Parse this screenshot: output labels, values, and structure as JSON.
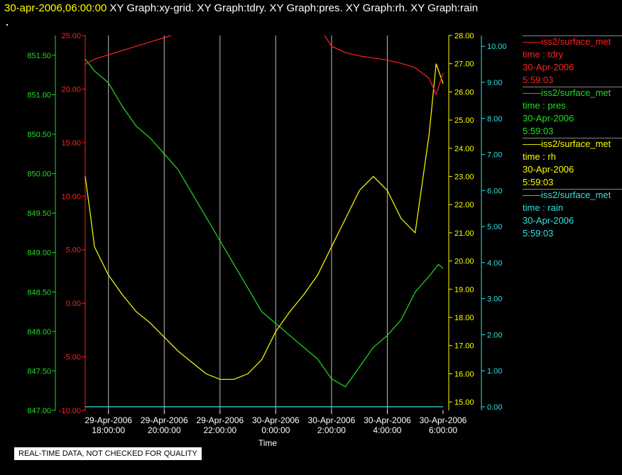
{
  "header": {
    "timestamp": "30-apr-2006,06:00:00",
    "graphs": "XY Graph:xy-grid.  XY Graph:tdry.  XY Graph:pres.  XY Graph:rh.  XY Graph:rain"
  },
  "notice": "REAL-TIME DATA, NOT CHECKED FOR QUALITY",
  "colors": {
    "tdry": "#ff2020",
    "pres": "#22dd22",
    "rh": "#ffff00",
    "rain": "#33e0e0",
    "grid": "#bbbbbb"
  },
  "legend": [
    {
      "series": "——iss2/surface_met",
      "label": "time : tdry",
      "date": "30-Apr-2006",
      "time": "5:59:03",
      "color": "#ff2020"
    },
    {
      "series": "——iss2/surface_met",
      "label": "time : pres",
      "date": "30-Apr-2006",
      "time": "5:59:03",
      "color": "#22dd22"
    },
    {
      "series": "——iss2/surface_met",
      "label": "time : rh",
      "date": "30-Apr-2006",
      "time": "5:59:03",
      "color": "#ffff00"
    },
    {
      "series": "——iss2/surface_met",
      "label": "time : rain",
      "date": "30-Apr-2006",
      "time": "5:59:03",
      "color": "#33e0e0"
    }
  ],
  "chart_data": {
    "type": "line",
    "xlabel": "Time",
    "xlim": [
      "2006-04-29 17:10",
      "2006-04-30 06:00"
    ],
    "x_ticks": [
      {
        "date": "29-Apr-2006",
        "time": "18:00:00"
      },
      {
        "date": "29-Apr-2006",
        "time": "20:00:00"
      },
      {
        "date": "29-Apr-2006",
        "time": "22:00:00"
      },
      {
        "date": "30-Apr-2006",
        "time": "0:00:00"
      },
      {
        "date": "30-Apr-2006",
        "time": "2:00:00"
      },
      {
        "date": "30-Apr-2006",
        "time": "4:00:00"
      },
      {
        "date": "30-Apr-2006",
        "time": "6:00:00"
      }
    ],
    "grid": true,
    "axes": {
      "pres": {
        "ylim": [
          847.0,
          851.75
        ],
        "ticks": [
          "847.00",
          "847.50",
          "848.00",
          "848.50",
          "849.00",
          "849.50",
          "850.00",
          "850.50",
          "851.00",
          "851.50"
        ]
      },
      "tdry": {
        "ylim": [
          -10.0,
          25.0
        ],
        "ticks": [
          "-10.00",
          "-5.00",
          "0.00",
          "5.00",
          "10.00",
          "15.00",
          "20.00",
          "25.00"
        ]
      },
      "rh": {
        "ylim": [
          14.7,
          28.0
        ],
        "ticks": [
          "15.00",
          "16.00",
          "17.00",
          "18.00",
          "19.00",
          "20.00",
          "21.00",
          "22.00",
          "23.00",
          "24.00",
          "25.00",
          "26.00",
          "27.00",
          "28.00"
        ]
      },
      "rain": {
        "ylim": [
          -0.1,
          10.3
        ],
        "ticks": [
          "0.00",
          "1.00",
          "2.00",
          "3.00",
          "4.00",
          "5.00",
          "6.00",
          "7.00",
          "8.00",
          "9.00",
          "10.00"
        ]
      }
    },
    "series": [
      {
        "name": "tdry",
        "x": [
          "2006-04-29 17:10",
          "2006-04-29 17:30",
          "2006-04-29 18:00",
          "2006-04-29 18:30",
          "2006-04-29 19:00",
          "2006-04-29 19:30",
          "2006-04-29 20:00",
          "2006-04-29 20:15",
          null,
          "2006-04-30 01:45",
          "2006-04-30 02:00",
          "2006-04-30 02:30",
          "2006-04-30 03:00",
          "2006-04-30 03:30",
          "2006-04-30 04:00",
          "2006-04-30 04:30",
          "2006-04-30 05:00",
          "2006-04-30 05:30",
          "2006-04-30 05:45",
          "2006-04-30 06:00"
        ],
        "y": [
          22.3,
          22.8,
          23.2,
          23.6,
          24.0,
          24.4,
          24.8,
          25.0,
          null,
          25.0,
          24.0,
          23.4,
          23.1,
          22.9,
          22.7,
          22.4,
          22.0,
          21.0,
          19.5,
          21.5
        ]
      },
      {
        "name": "pres",
        "x": [
          "2006-04-29 17:10",
          "2006-04-29 17:30",
          "2006-04-29 18:00",
          "2006-04-29 18:30",
          "2006-04-29 19:00",
          "2006-04-29 19:30",
          "2006-04-29 20:00",
          "2006-04-29 20:30",
          "2006-04-29 21:00",
          "2006-04-29 21:30",
          "2006-04-29 22:00",
          "2006-04-29 22:30",
          "2006-04-29 23:00",
          "2006-04-29 23:30",
          "2006-04-30 00:00",
          "2006-04-30 00:30",
          "2006-04-30 01:00",
          "2006-04-30 01:30",
          "2006-04-30 02:00",
          "2006-04-30 02:30",
          "2006-04-30 03:00",
          "2006-04-30 03:30",
          "2006-04-30 04:00",
          "2006-04-30 04:30",
          "2006-04-30 05:00",
          "2006-04-30 05:30",
          "2006-04-30 05:50",
          "2006-04-30 06:00"
        ],
        "y": [
          851.45,
          851.3,
          851.15,
          850.85,
          850.6,
          850.45,
          850.25,
          850.05,
          849.75,
          849.45,
          849.15,
          848.85,
          848.55,
          848.25,
          848.1,
          847.95,
          847.8,
          847.65,
          847.4,
          847.3,
          847.55,
          847.8,
          847.95,
          848.15,
          848.5,
          848.7,
          848.85,
          848.8
        ]
      },
      {
        "name": "rh",
        "x": [
          "2006-04-29 17:10",
          "2006-04-29 17:20",
          "2006-04-29 17:30",
          "2006-04-29 18:00",
          "2006-04-29 18:30",
          "2006-04-29 19:00",
          "2006-04-29 19:30",
          "2006-04-29 20:00",
          "2006-04-29 20:30",
          "2006-04-29 21:00",
          "2006-04-29 21:30",
          "2006-04-29 22:00",
          "2006-04-29 22:30",
          "2006-04-29 23:00",
          "2006-04-29 23:30",
          "2006-04-30 00:00",
          "2006-04-30 00:30",
          "2006-04-30 01:00",
          "2006-04-30 01:30",
          "2006-04-30 02:00",
          "2006-04-30 02:30",
          "2006-04-30 03:00",
          "2006-04-30 03:30",
          "2006-04-30 04:00",
          "2006-04-30 04:30",
          "2006-04-30 05:00",
          "2006-04-30 05:30",
          "2006-04-30 05:45",
          "2006-04-30 06:00"
        ],
        "y": [
          23.0,
          21.8,
          20.5,
          19.5,
          18.8,
          18.2,
          17.8,
          17.3,
          16.8,
          16.4,
          16.0,
          15.8,
          15.8,
          16.0,
          16.5,
          17.5,
          18.2,
          18.8,
          19.5,
          20.5,
          21.5,
          22.5,
          23.0,
          22.5,
          21.5,
          21.0,
          24.5,
          27.0,
          26.3
        ]
      },
      {
        "name": "rain",
        "x": [
          "2006-04-29 17:10",
          "2006-04-30 06:00"
        ],
        "y": [
          0.0,
          0.0
        ]
      }
    ]
  }
}
